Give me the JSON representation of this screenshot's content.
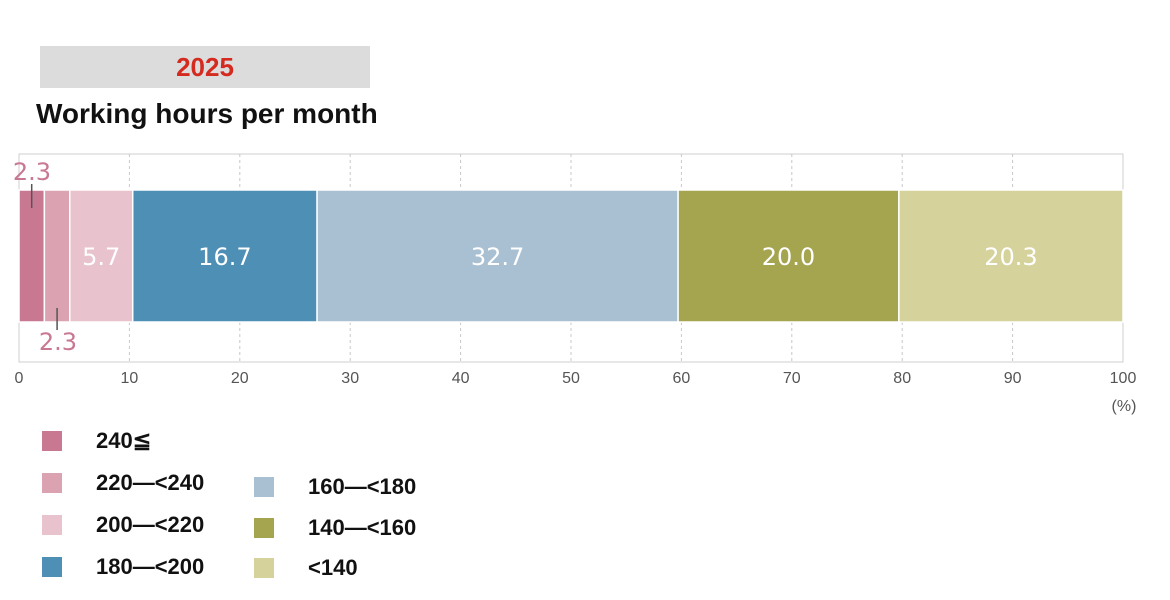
{
  "header": {
    "year": "2025"
  },
  "chart_data": {
    "type": "bar",
    "orientation": "horizontal-stacked",
    "title": "Working hours per month",
    "xlim": [
      0,
      100
    ],
    "x_ticks": [
      "0",
      "10",
      "20",
      "30",
      "40",
      "50",
      "60",
      "70",
      "80",
      "90",
      "100"
    ],
    "x_unit": "(%)",
    "grid": true,
    "series": [
      {
        "name": "240≦",
        "value": 2.3,
        "label": "2.3",
        "label_position": "above",
        "color": "#c87891"
      },
      {
        "name": "220―<240",
        "value": 2.3,
        "label": "2.3",
        "label_position": "below",
        "color": "#dba2b2"
      },
      {
        "name": "200―<220",
        "value": 5.7,
        "label": "5.7",
        "label_position": "inside",
        "color": "#e8c2cc"
      },
      {
        "name": "180―<200",
        "value": 16.7,
        "label": "16.7",
        "label_position": "inside",
        "color": "#4e8fb5"
      },
      {
        "name": "160―<180",
        "value": 32.7,
        "label": "32.7",
        "label_position": "inside",
        "color": "#a9c0d3"
      },
      {
        "name": "140―<160",
        "value": 20.0,
        "label": "20.0",
        "label_position": "inside",
        "color": "#a5a54f"
      },
      {
        "name": "<140",
        "value": 20.3,
        "label": "20.3",
        "label_position": "inside",
        "color": "#d6d29b"
      }
    ],
    "legend": [
      {
        "label": "240≦",
        "color": "#c87891"
      },
      {
        "label": "220―<240",
        "color": "#dba2b2"
      },
      {
        "label": "200―<220",
        "color": "#e8c2cc"
      },
      {
        "label": "180―<200",
        "color": "#4e8fb5"
      },
      {
        "label": "160―<180",
        "color": "#a9c0d3"
      },
      {
        "label": "140―<160",
        "color": "#a5a54f"
      },
      {
        "label": "<140",
        "color": "#d6d29b"
      }
    ]
  }
}
